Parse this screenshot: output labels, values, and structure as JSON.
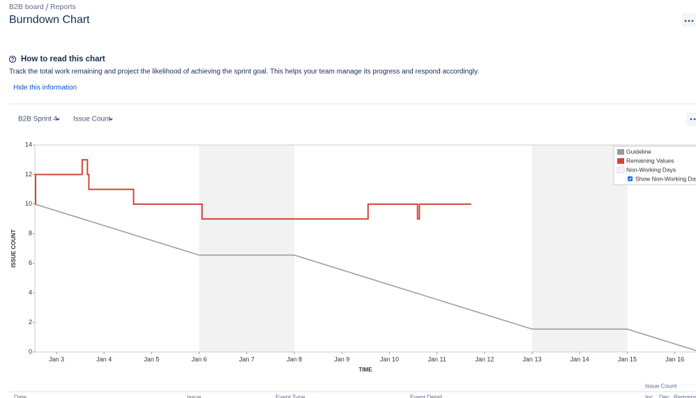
{
  "breadcrumbs": [
    "B2B board",
    "Reports"
  ],
  "header": {
    "title": "Burndown Chart"
  },
  "info": {
    "heading": "How to read this chart",
    "text": "Track the total work remaining and project the likelihood of achieving the sprint goal. This helps your team manage its progress and respond accordingly.",
    "link": "Hide this information"
  },
  "controls": [
    "B2B Sprint 4",
    "Issue Count"
  ],
  "chart_data": {
    "type": "line",
    "xlabel": "TIME",
    "ylabel": "ISSUE COUNT",
    "xlim": [
      2.545,
      16.445
    ],
    "ylim": [
      0,
      14
    ],
    "yticks": [
      0,
      2,
      4,
      6,
      8,
      10,
      12,
      14
    ],
    "xticks": [
      {
        "value": 3,
        "label": "Jan 3"
      },
      {
        "value": 4,
        "label": "Jan 4"
      },
      {
        "value": 5,
        "label": "Jan 5"
      },
      {
        "value": 6,
        "label": "Jan 6"
      },
      {
        "value": 7,
        "label": "Jan 7"
      },
      {
        "value": 8,
        "label": "Jan 8"
      },
      {
        "value": 9,
        "label": "Jan 9"
      },
      {
        "value": 10,
        "label": "Jan 10"
      },
      {
        "value": 11,
        "label": "Jan 11"
      },
      {
        "value": 12,
        "label": "Jan 12"
      },
      {
        "value": 13,
        "label": "Jan 13"
      },
      {
        "value": 14,
        "label": "Jan 14"
      },
      {
        "value": 15,
        "label": "Jan 15"
      },
      {
        "value": 16,
        "label": "Jan 16"
      }
    ],
    "non_working_days": [
      [
        6,
        8
      ],
      [
        13,
        15
      ]
    ],
    "non_working_label": "Non-Working Days",
    "non_working_color": "#f2f2f2",
    "toggle_label": "Show Non-Working Days",
    "legend": "top-right",
    "series": [
      {
        "name": "Guideline",
        "color": "#999999",
        "x": [
          2.545,
          6,
          8,
          13,
          15,
          16.445
        ],
        "values": [
          10,
          6.55,
          6.55,
          1.55,
          1.55,
          0.1
        ]
      },
      {
        "name": "Remaining Values",
        "color": "#d04437",
        "x": [
          2.545,
          2.56,
          2.56,
          3.54,
          3.54,
          3.65,
          3.65,
          3.68,
          3.68,
          4.62,
          4.62,
          6.06,
          6.06,
          9.55,
          9.55,
          10.59,
          10.59,
          10.63,
          10.63,
          11.72
        ],
        "values": [
          10,
          10,
          12,
          12,
          13,
          13,
          12,
          12,
          11,
          11,
          10,
          10,
          9,
          9,
          10,
          10,
          9,
          9,
          10,
          10
        ]
      }
    ]
  },
  "table": {
    "group_header": "Issue Count",
    "columns": [
      "Date",
      "Issue",
      "Event Type",
      "Event Detail",
      "Inc.",
      "Dec.",
      "Remaining"
    ]
  }
}
